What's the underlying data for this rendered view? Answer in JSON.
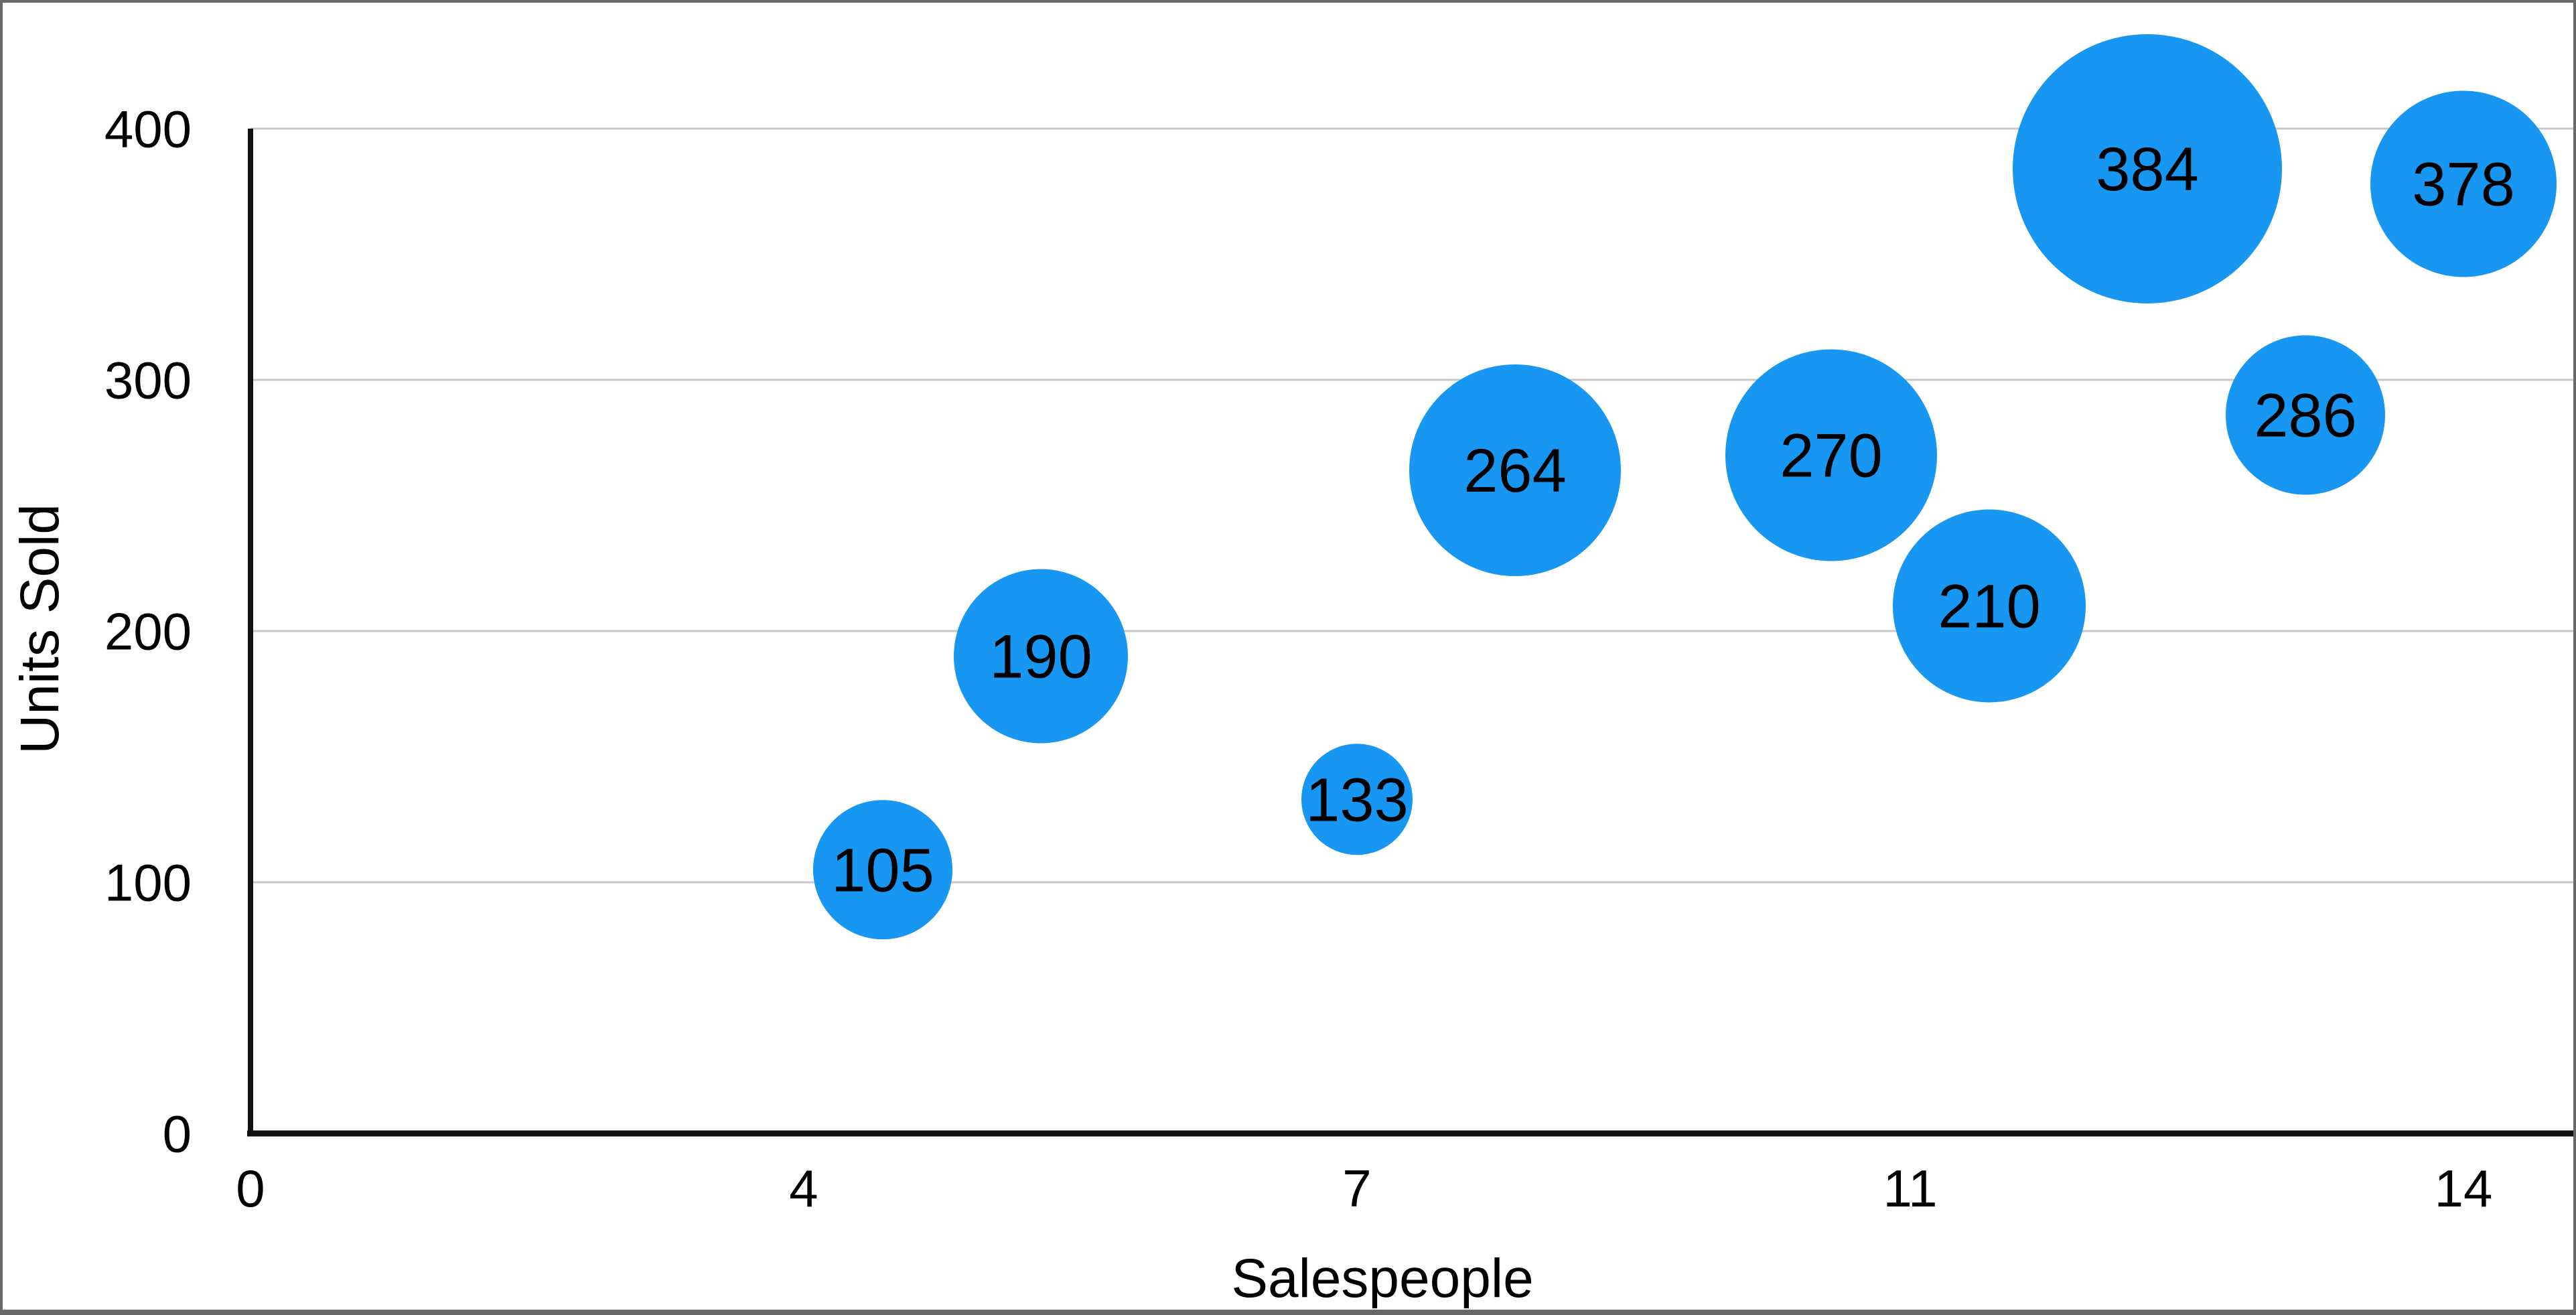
{
  "chart_data": {
    "type": "bubble",
    "title": "",
    "xlabel": "Salespeople",
    "ylabel": "Units Sold",
    "xlim": [
      0,
      14.6
    ],
    "ylim": [
      0,
      400
    ],
    "grid": true,
    "legend_position": "none",
    "colors": {
      "bubble": "#1897F2",
      "gridline": "#C7C7CA",
      "axis": "#111111",
      "text": "#000000",
      "frame_border": "#696969",
      "background": "#FFFFFF"
    },
    "x_ticks": [
      {
        "label": "0",
        "position": 0
      },
      {
        "label": "4",
        "position": 3.5
      },
      {
        "label": "7",
        "position": 7
      },
      {
        "label": "11",
        "position": 10.5
      },
      {
        "label": "14",
        "position": 14
      }
    ],
    "y_ticks": [
      {
        "label": "0",
        "value": 0
      },
      {
        "label": "100",
        "value": 100
      },
      {
        "label": "200",
        "value": 200
      },
      {
        "label": "300",
        "value": 300
      },
      {
        "label": "400",
        "value": 400
      }
    ],
    "points": [
      {
        "x": 4,
        "y": 105,
        "label": "105",
        "radius_px": 104
      },
      {
        "x": 5,
        "y": 190,
        "label": "190",
        "radius_px": 130
      },
      {
        "x": 7,
        "y": 133,
        "label": "133",
        "radius_px": 83
      },
      {
        "x": 8,
        "y": 264,
        "label": "264",
        "radius_px": 158
      },
      {
        "x": 10,
        "y": 270,
        "label": "270",
        "radius_px": 158
      },
      {
        "x": 11,
        "y": 210,
        "label": "210",
        "radius_px": 144
      },
      {
        "x": 12,
        "y": 384,
        "label": "384",
        "radius_px": 201
      },
      {
        "x": 13,
        "y": 286,
        "label": "286",
        "radius_px": 119
      },
      {
        "x": 14,
        "y": 378,
        "label": "378",
        "radius_px": 139
      }
    ]
  }
}
